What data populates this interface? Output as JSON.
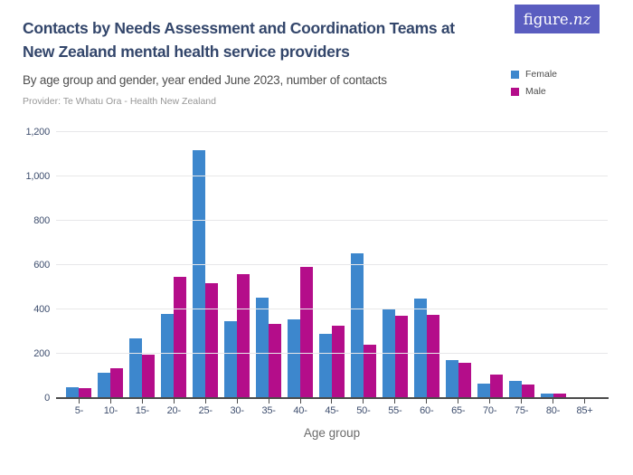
{
  "header": {
    "title_line1": "Contacts by Needs Assessment and Coordination Teams at",
    "title_line2": "New Zealand mental health service providers",
    "subtitle": "By age group and gender, year ended June 2023, number of contacts",
    "provider": "Provider: Te Whatu Ora - Health New Zealand"
  },
  "logo": {
    "text_regular": "figure.",
    "text_italic": "nz",
    "background": "#5a5dc0"
  },
  "chart_data": {
    "type": "bar",
    "title": "Contacts by Needs Assessment and Coordination Teams at New Zealand mental health service providers",
    "subtitle": "By age group and gender, year ended June 2023, number of contacts",
    "categories": [
      "5-",
      "10-",
      "15-",
      "20-",
      "25-",
      "30-",
      "35-",
      "40-",
      "45-",
      "50-",
      "55-",
      "60-",
      "65-",
      "70-",
      "75-",
      "80-",
      "85+"
    ],
    "series": [
      {
        "name": "Female",
        "color": "#3d87cd",
        "values": [
          50,
          115,
          270,
          378,
          1120,
          345,
          455,
          355,
          290,
          655,
          405,
          450,
          170,
          65,
          78,
          20,
          5
        ]
      },
      {
        "name": "Male",
        "color": "#b40d8a",
        "values": [
          45,
          135,
          195,
          545,
          520,
          560,
          335,
          590,
          325,
          240,
          370,
          375,
          160,
          105,
          60,
          22,
          3
        ]
      }
    ],
    "xlabel": "Age group",
    "ylabel": "",
    "ylim": [
      0,
      1200
    ],
    "yticks": [
      0,
      200,
      400,
      600,
      800,
      1000,
      1200
    ],
    "ytick_labels": [
      "0",
      "200",
      "400",
      "600",
      "800",
      "1,000",
      "1,200"
    ],
    "grid": true,
    "legend_position": "top-right"
  }
}
